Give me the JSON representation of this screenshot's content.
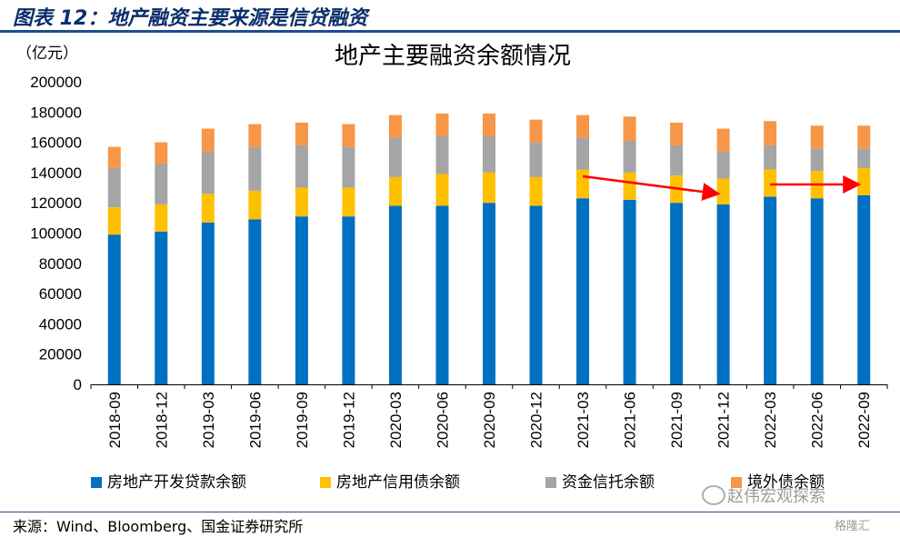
{
  "header": {
    "title": "图表 12：地产融资主要来源是信贷融资"
  },
  "footer": {
    "source": "来源：Wind、Bloomberg、国金证券研究所"
  },
  "watermark": {
    "text": "赵伟宏观探索",
    "text2": "格隆汇"
  },
  "colors": {
    "loans": "#0070C0",
    "bonds": "#FFC000",
    "trust": "#A5A5A5",
    "overseas": "#F79646",
    "arrow": "#FF0000",
    "header": "#0b2f6b"
  },
  "chart_data": {
    "type": "bar",
    "stacked": true,
    "title": "地产主要融资余额情况",
    "unit_label": "（亿元）",
    "ylim": [
      0,
      200000
    ],
    "yticks": [
      0,
      20000,
      40000,
      60000,
      80000,
      100000,
      120000,
      140000,
      160000,
      180000,
      200000
    ],
    "categories": [
      "2018-09",
      "2018-12",
      "2019-03",
      "2019-06",
      "2019-09",
      "2019-12",
      "2020-03",
      "2020-06",
      "2020-09",
      "2020-12",
      "2021-03",
      "2021-06",
      "2021-09",
      "2021-12",
      "2022-03",
      "2022-06",
      "2022-09"
    ],
    "series": [
      {
        "name": "房地产开发贷款余额",
        "color": "#0070C0",
        "values": [
          99000,
          101000,
          107000,
          109000,
          111000,
          111000,
          118000,
          118000,
          120000,
          118000,
          123000,
          122000,
          120000,
          119000,
          124000,
          123000,
          125000
        ]
      },
      {
        "name": "房地产信用债余额",
        "color": "#FFC000",
        "values": [
          18000,
          18000,
          19000,
          19000,
          19000,
          19000,
          19000,
          21000,
          20000,
          19000,
          19000,
          18000,
          18000,
          17000,
          18000,
          18000,
          18000
        ]
      },
      {
        "name": "资金信托余额",
        "color": "#A5A5A5",
        "values": [
          26000,
          27000,
          28000,
          29000,
          28000,
          27000,
          26000,
          25000,
          24000,
          23000,
          21000,
          21000,
          20000,
          18000,
          16000,
          15000,
          13000
        ]
      },
      {
        "name": "境外债余额",
        "color": "#F79646",
        "values": [
          14000,
          14000,
          15000,
          15000,
          15000,
          15000,
          15000,
          15000,
          15000,
          15000,
          15000,
          16000,
          15000,
          15000,
          16000,
          15000,
          15000
        ]
      }
    ],
    "grid": false,
    "legend_position": "bottom"
  }
}
